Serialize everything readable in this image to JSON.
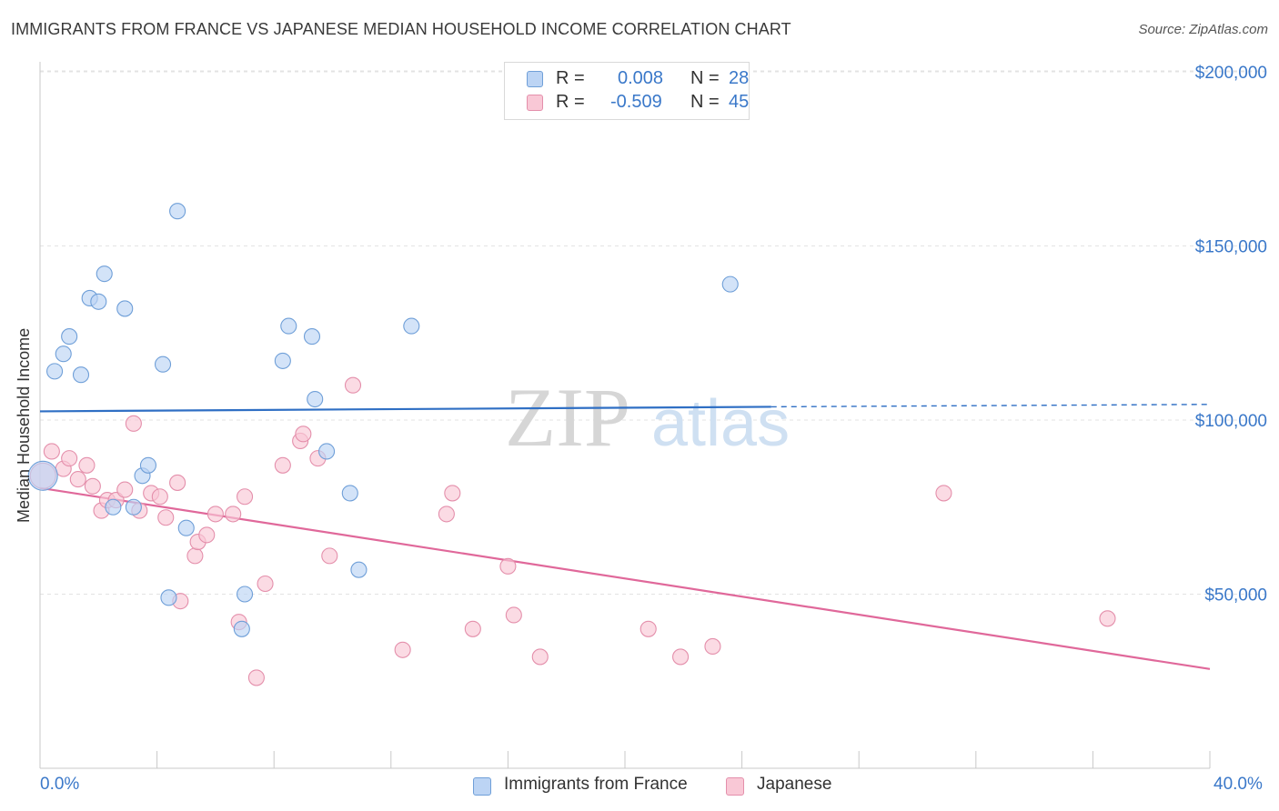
{
  "header": {
    "title": "IMMIGRANTS FROM FRANCE VS JAPANESE MEDIAN HOUSEHOLD INCOME CORRELATION CHART",
    "source": "Source: ZipAtlas.com"
  },
  "legend": {
    "rows": [
      {
        "r_label": "R =",
        "r_value": "0.008",
        "n_label": "N =",
        "n_value": "28"
      },
      {
        "r_label": "R =",
        "r_value": "-0.509",
        "n_label": "N =",
        "n_value": "45"
      }
    ]
  },
  "colors": {
    "france_fill": "#bcd4f4",
    "france_stroke": "#6f9fd8",
    "france_line": "#2f6fc4",
    "japanese_fill": "#f9c8d6",
    "japanese_stroke": "#e48fab",
    "japanese_line": "#e0689a",
    "axis_text": "#3a78c9",
    "grid": "#e3e3e3"
  },
  "chart_data": {
    "type": "scatter",
    "title": "IMMIGRANTS FROM FRANCE VS JAPANESE MEDIAN HOUSEHOLD INCOME CORRELATION CHART",
    "xlabel": "",
    "ylabel": "Median Household Income",
    "xlim": [
      0,
      40
    ],
    "ylim": [
      0,
      210000
    ],
    "x_tick_labels": [
      "0.0%",
      "40.0%"
    ],
    "y_tick_labels": [
      "$50,000",
      "$100,000",
      "$150,000",
      "$200,000"
    ],
    "y_ticks": [
      50000,
      100000,
      150000,
      200000
    ],
    "grid": true,
    "legend_position": "top-center and bottom",
    "series": [
      {
        "name": "Immigrants from France",
        "points": [
          [
            0.1,
            84000
          ],
          [
            0.5,
            114000
          ],
          [
            0.8,
            119000
          ],
          [
            1.0,
            124000
          ],
          [
            1.4,
            113000
          ],
          [
            1.7,
            135000
          ],
          [
            2.0,
            134000
          ],
          [
            2.2,
            142000
          ],
          [
            2.5,
            75000
          ],
          [
            2.9,
            132000
          ],
          [
            3.2,
            75000
          ],
          [
            3.5,
            84000
          ],
          [
            3.7,
            87000
          ],
          [
            4.2,
            116000
          ],
          [
            4.7,
            160000
          ],
          [
            5.0,
            69000
          ],
          [
            4.4,
            49000
          ],
          [
            7.0,
            50000
          ],
          [
            6.9,
            40000
          ],
          [
            8.3,
            117000
          ],
          [
            8.5,
            127000
          ],
          [
            9.3,
            124000
          ],
          [
            9.4,
            106000
          ],
          [
            9.8,
            91000
          ],
          [
            10.6,
            79000
          ],
          [
            10.9,
            57000
          ],
          [
            12.7,
            127000
          ],
          [
            23.6,
            139000
          ]
        ],
        "trend": {
          "x": [
            0,
            25
          ],
          "y": [
            102500,
            103800
          ],
          "dashed_to": [
            40,
            104500
          ]
        }
      },
      {
        "name": "Japanese",
        "points": [
          [
            0.1,
            84000
          ],
          [
            0.4,
            91000
          ],
          [
            0.8,
            86000
          ],
          [
            1.0,
            89000
          ],
          [
            1.3,
            83000
          ],
          [
            1.6,
            87000
          ],
          [
            1.8,
            81000
          ],
          [
            2.1,
            74000
          ],
          [
            2.3,
            77000
          ],
          [
            2.6,
            77000
          ],
          [
            2.9,
            80000
          ],
          [
            3.2,
            99000
          ],
          [
            3.4,
            74000
          ],
          [
            3.8,
            79000
          ],
          [
            4.1,
            78000
          ],
          [
            4.3,
            72000
          ],
          [
            4.7,
            82000
          ],
          [
            4.8,
            48000
          ],
          [
            5.3,
            61000
          ],
          [
            5.4,
            65000
          ],
          [
            5.7,
            67000
          ],
          [
            6.0,
            73000
          ],
          [
            6.6,
            73000
          ],
          [
            7.0,
            78000
          ],
          [
            6.8,
            42000
          ],
          [
            7.4,
            26000
          ],
          [
            7.7,
            53000
          ],
          [
            8.3,
            87000
          ],
          [
            8.9,
            94000
          ],
          [
            9.0,
            96000
          ],
          [
            9.5,
            89000
          ],
          [
            9.9,
            61000
          ],
          [
            10.7,
            110000
          ],
          [
            12.4,
            34000
          ],
          [
            13.9,
            73000
          ],
          [
            14.1,
            79000
          ],
          [
            14.8,
            40000
          ],
          [
            16.0,
            58000
          ],
          [
            16.2,
            44000
          ],
          [
            17.1,
            32000
          ],
          [
            20.8,
            40000
          ],
          [
            21.9,
            32000
          ],
          [
            23.0,
            35000
          ],
          [
            30.9,
            79000
          ],
          [
            36.5,
            43000
          ]
        ],
        "trend": {
          "x": [
            0,
            40
          ],
          "y": [
            80500,
            28500
          ]
        }
      }
    ]
  },
  "bottom_legend": {
    "items": [
      "Immigrants from France",
      "Japanese"
    ]
  },
  "watermark": {
    "part1": "ZIP",
    "part2": "atlas"
  }
}
